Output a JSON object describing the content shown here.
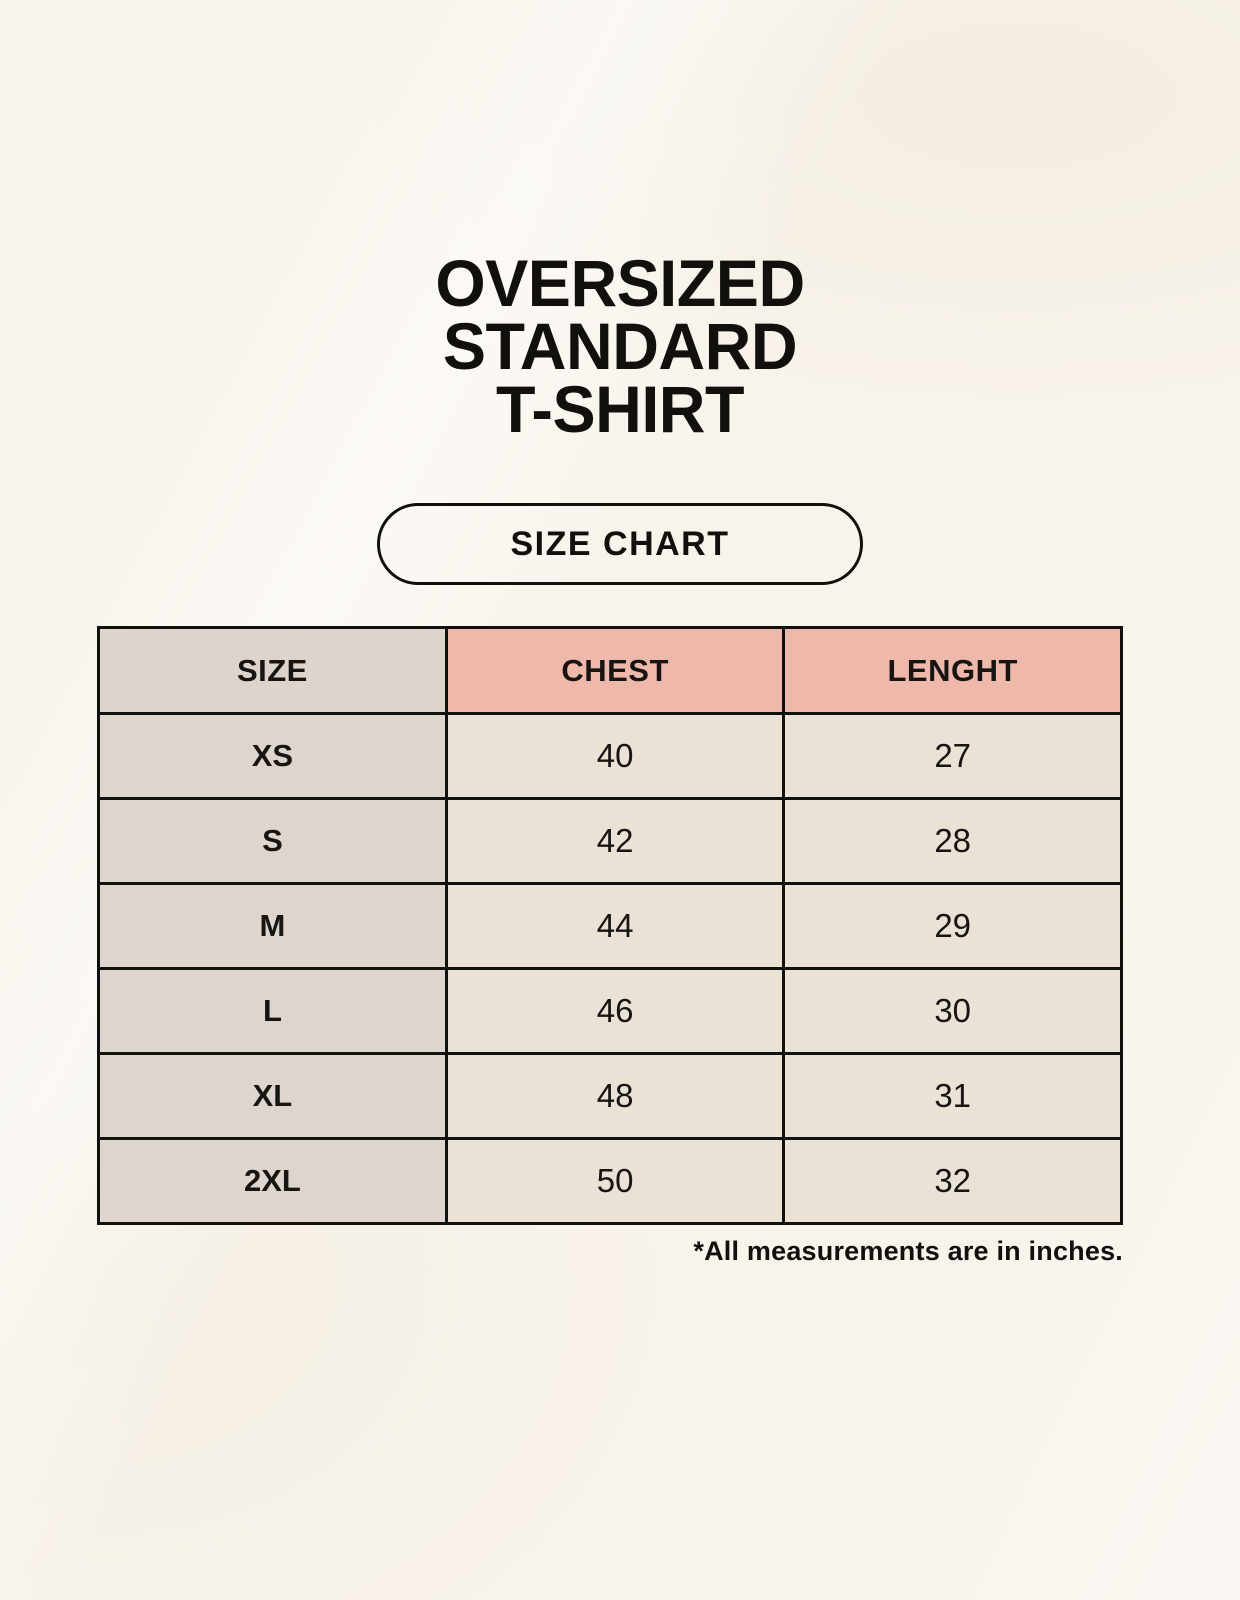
{
  "page": {
    "background_color": "#F8F3EB",
    "title_lines": [
      "OVERSIZED",
      "STANDARD",
      "T-SHIRT"
    ]
  },
  "size_chart_button": {
    "label": "SIZE CHART"
  },
  "chart_data": {
    "type": "table",
    "title": "SIZE CHART",
    "subtitle": "OVERSIZED STANDARD T-SHIRT",
    "columns": [
      "SIZE",
      "CHEST",
      "LENGHT"
    ],
    "rows": [
      [
        "XS",
        "40",
        "27"
      ],
      [
        "S",
        "42",
        "28"
      ],
      [
        "M",
        "44",
        "29"
      ],
      [
        "L",
        "46",
        "30"
      ],
      [
        "XL",
        "48",
        "31"
      ],
      [
        "2XL",
        "50",
        "32"
      ]
    ],
    "footnote": "*All measurements are in inches.",
    "units": "inches",
    "layout": {
      "grid": "full-borders",
      "header_row": true,
      "label_column": true
    }
  },
  "colors": {
    "background": "#F8F3EB",
    "header_size_bg": "#DCD4CD",
    "header_measure_bg": "#EEB9AB",
    "row_label_bg": "#DDD5CE",
    "value_cell_bg": "#E9E2D5",
    "border": "#12100D",
    "text": "#171411"
  }
}
